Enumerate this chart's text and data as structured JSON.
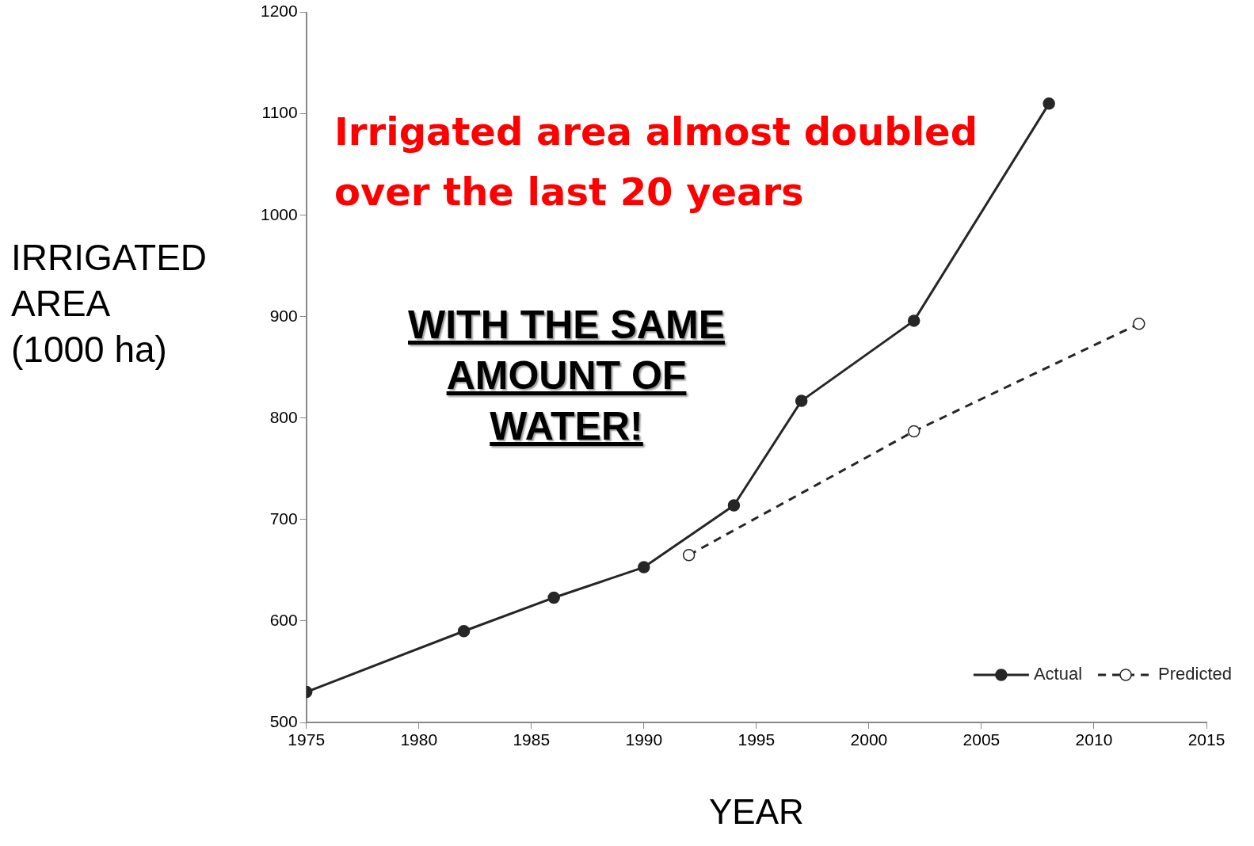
{
  "chart_data": {
    "type": "line",
    "xlabel": "YEAR",
    "ylabel": "IRRIGATED AREA (1000 ha)",
    "annotations": [
      "Irrigated area almost doubled over the last 20 years",
      "WITH THE SAME AMOUNT OF WATER!"
    ],
    "series": [
      {
        "name": "Actual",
        "color": "#262626",
        "x": [
          1975,
          1982,
          1986,
          1990,
          1994,
          1997,
          2002,
          2008
        ],
        "values": [
          530,
          590,
          623,
          653,
          714,
          817,
          896,
          1110
        ],
        "line_style": "solid"
      },
      {
        "name": "Predicted",
        "color": "#262626",
        "x": [
          1992,
          2002,
          2012
        ],
        "values": [
          665,
          787,
          893
        ],
        "line_style": "dashed"
      }
    ],
    "xlim": [
      1975,
      2015
    ],
    "xticks": [
      1975,
      1980,
      1985,
      1990,
      1995,
      2000,
      2005,
      2010,
      2015
    ],
    "ylim": [
      500,
      1200
    ],
    "yticks": [
      500,
      600,
      700,
      800,
      900,
      1000,
      1100,
      1200
    ],
    "grid": false,
    "legend": "bottom right",
    "marker": "circle"
  }
}
